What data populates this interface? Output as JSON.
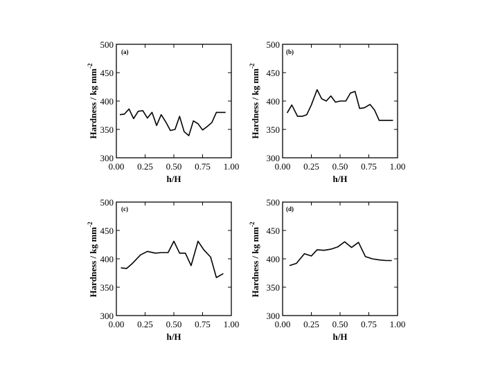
{
  "chart_data": [
    {
      "type": "line",
      "panel_label": "(a)",
      "xlabel": "h/H",
      "ylabel": "Hardness / kg mm",
      "ylabel_exponent": "-2",
      "xlim": [
        0,
        1
      ],
      "ylim": [
        300,
        500
      ],
      "xticks": [
        "0.00",
        "0.25",
        "0.50",
        "0.75",
        "1.00"
      ],
      "yticks": [
        "300",
        "350",
        "400",
        "450",
        "500"
      ],
      "series": [
        {
          "x": [
            0.03,
            0.07,
            0.11,
            0.15,
            0.19,
            0.23,
            0.27,
            0.31,
            0.35,
            0.39,
            0.43,
            0.47,
            0.51,
            0.55,
            0.59,
            0.63,
            0.67,
            0.71,
            0.75,
            0.79,
            0.83,
            0.87,
            0.91,
            0.95
          ],
          "y": [
            376,
            377,
            386,
            369,
            382,
            383,
            370,
            380,
            357,
            376,
            363,
            348,
            350,
            373,
            346,
            339,
            365,
            360,
            349,
            355,
            362,
            380,
            380,
            380
          ]
        }
      ]
    },
    {
      "type": "line",
      "panel_label": "(b)",
      "xlabel": "h/H",
      "ylabel": "Hardness / kg mm",
      "ylabel_exponent": "-2",
      "xlim": [
        0,
        1
      ],
      "ylim": [
        300,
        500
      ],
      "xticks": [
        "0.00",
        "0.25",
        "0.50",
        "0.75",
        "1.00"
      ],
      "yticks": [
        "300",
        "350",
        "400",
        "450",
        "500"
      ],
      "series": [
        {
          "x": [
            0.04,
            0.08,
            0.13,
            0.17,
            0.21,
            0.25,
            0.3,
            0.34,
            0.38,
            0.42,
            0.46,
            0.5,
            0.55,
            0.59,
            0.63,
            0.67,
            0.71,
            0.76,
            0.8,
            0.84,
            0.88,
            0.92,
            0.96
          ],
          "y": [
            379,
            393,
            373,
            373,
            376,
            393,
            420,
            404,
            400,
            409,
            398,
            400,
            400,
            414,
            417,
            387,
            388,
            394,
            384,
            366,
            366,
            366,
            366
          ]
        }
      ]
    },
    {
      "type": "line",
      "panel_label": "(c)",
      "xlabel": "h/H",
      "ylabel": "Hardness / kg mm",
      "ylabel_exponent": "-2",
      "xlim": [
        0,
        1
      ],
      "ylim": [
        300,
        500
      ],
      "xticks": [
        "0.00",
        "0.25",
        "0.50",
        "0.75",
        "1.00"
      ],
      "yticks": [
        "300",
        "350",
        "400",
        "450",
        "500"
      ],
      "series": [
        {
          "x": [
            0.04,
            0.09,
            0.14,
            0.21,
            0.27,
            0.34,
            0.39,
            0.45,
            0.5,
            0.55,
            0.6,
            0.65,
            0.71,
            0.76,
            0.82,
            0.87,
            0.93
          ],
          "y": [
            384,
            383,
            392,
            407,
            413,
            410,
            411,
            411,
            431,
            410,
            410,
            388,
            431,
            416,
            403,
            367,
            374
          ]
        }
      ]
    },
    {
      "type": "line",
      "panel_label": "(d)",
      "xlabel": "h/H",
      "ylabel": "Hardness / kg mm",
      "ylabel_exponent": "-2",
      "xlim": [
        0,
        1
      ],
      "ylim": [
        300,
        500
      ],
      "xticks": [
        "0.00",
        "0.25",
        "0.50",
        "0.75",
        "1.00"
      ],
      "yticks": [
        "300",
        "350",
        "400",
        "450",
        "500"
      ],
      "series": [
        {
          "x": [
            0.06,
            0.12,
            0.19,
            0.25,
            0.3,
            0.36,
            0.42,
            0.48,
            0.54,
            0.6,
            0.66,
            0.72,
            0.78,
            0.84,
            0.9,
            0.95
          ],
          "y": [
            388,
            392,
            409,
            405,
            416,
            415,
            417,
            421,
            430,
            420,
            429,
            404,
            400,
            398,
            397,
            397
          ]
        }
      ]
    }
  ]
}
